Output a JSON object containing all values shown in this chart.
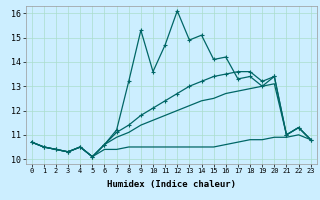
{
  "xlabel": "Humidex (Indice chaleur)",
  "bg_color": "#cceeff",
  "grid_color": "#aaddcc",
  "line_color": "#006666",
  "xlim": [
    -0.5,
    23.5
  ],
  "ylim": [
    9.8,
    16.3
  ],
  "xticks": [
    0,
    1,
    2,
    3,
    4,
    5,
    6,
    7,
    8,
    9,
    10,
    11,
    12,
    13,
    14,
    15,
    16,
    17,
    18,
    19,
    20,
    21,
    22,
    23
  ],
  "yticks": [
    10,
    11,
    12,
    13,
    14,
    15,
    16
  ],
  "series": {
    "main_x": [
      0,
      1,
      2,
      3,
      4,
      5,
      6,
      7,
      8,
      9,
      10,
      11,
      12,
      13,
      14,
      15,
      16,
      17,
      18,
      19,
      20,
      21,
      22,
      23
    ],
    "main_y": [
      10.7,
      10.5,
      10.4,
      10.3,
      10.5,
      10.1,
      10.6,
      11.2,
      13.2,
      15.3,
      13.6,
      14.7,
      16.1,
      14.9,
      15.1,
      14.1,
      14.2,
      13.3,
      13.4,
      13.0,
      13.4,
      11.0,
      11.3,
      10.8
    ],
    "flat_x": [
      0,
      1,
      2,
      3,
      4,
      5,
      6,
      7,
      8,
      9,
      10,
      11,
      12,
      13,
      14,
      15,
      16,
      17,
      18,
      19,
      20,
      21,
      22,
      23
    ],
    "flat_y": [
      10.7,
      10.5,
      10.4,
      10.3,
      10.5,
      10.1,
      10.4,
      10.4,
      10.5,
      10.5,
      10.5,
      10.5,
      10.5,
      10.5,
      10.5,
      10.5,
      10.6,
      10.7,
      10.8,
      10.8,
      10.9,
      10.9,
      11.0,
      10.8
    ],
    "upper_x": [
      0,
      1,
      2,
      3,
      4,
      5,
      6,
      7,
      8,
      9,
      10,
      11,
      12,
      13,
      14,
      15,
      16,
      17,
      18,
      19,
      20,
      21,
      22,
      23
    ],
    "upper_y": [
      10.7,
      10.5,
      10.4,
      10.3,
      10.5,
      10.1,
      10.6,
      11.1,
      11.4,
      11.8,
      12.1,
      12.4,
      12.7,
      13.0,
      13.2,
      13.4,
      13.5,
      13.6,
      13.6,
      13.2,
      13.4,
      11.0,
      11.3,
      10.8
    ],
    "lower_x": [
      0,
      1,
      2,
      3,
      4,
      5,
      6,
      7,
      8,
      9,
      10,
      11,
      12,
      13,
      14,
      15,
      16,
      17,
      18,
      19,
      20,
      21,
      22,
      23
    ],
    "lower_y": [
      10.7,
      10.5,
      10.4,
      10.3,
      10.5,
      10.1,
      10.6,
      10.9,
      11.1,
      11.4,
      11.6,
      11.8,
      12.0,
      12.2,
      12.4,
      12.5,
      12.7,
      12.8,
      12.9,
      13.0,
      13.1,
      11.0,
      11.3,
      10.8
    ]
  }
}
